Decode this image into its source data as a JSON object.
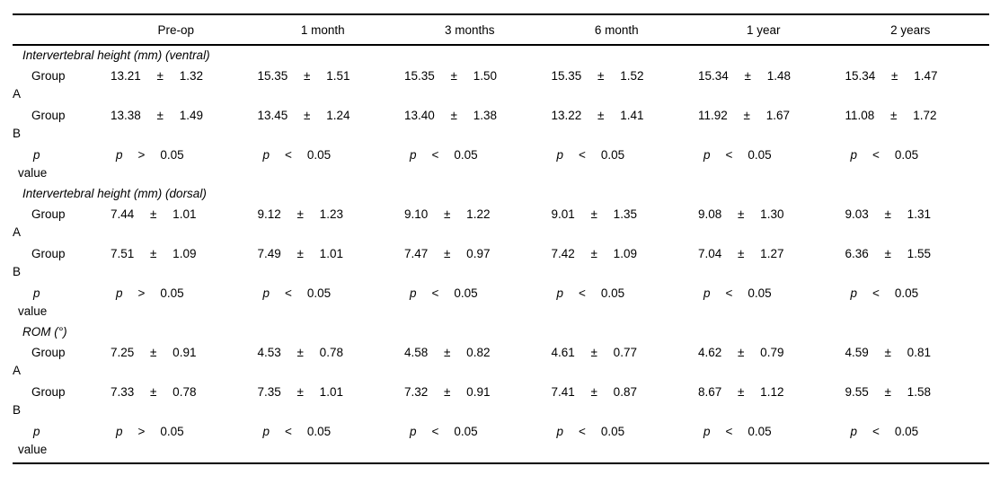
{
  "table": {
    "time_points": [
      "Pre-op",
      "1 month",
      "3 months",
      "6 month",
      "1 year",
      "2 years"
    ],
    "sections": [
      {
        "title": "Intervertebral height (mm) (ventral)",
        "rows": [
          {
            "label1": "Group",
            "label2": "A",
            "cells": [
              "13.21 ± 1.32",
              "15.35 ± 1.51",
              "15.35 ± 1.50",
              "15.35 ± 1.52",
              "15.34 ± 1.48",
              "15.34 ± 1.47"
            ]
          },
          {
            "label1": "Group",
            "label2": "B",
            "cells": [
              "13.38 ± 1.49",
              "13.45 ± 1.24",
              "13.40 ± 1.38",
              "13.22 ± 1.41",
              "11.92 ± 1.67",
              "11.08 ± 1.72"
            ]
          },
          {
            "label1": "p",
            "label2": "value",
            "cells": [
              {
                "sym": "p",
                "op": ">",
                "val": "0.05"
              },
              {
                "sym": "p",
                "op": "<",
                "val": "0.05"
              },
              {
                "sym": "p",
                "op": "<",
                "val": "0.05"
              },
              {
                "sym": "p",
                "op": "<",
                "val": "0.05"
              },
              {
                "sym": "p",
                "op": "<",
                "val": "0.05"
              },
              {
                "sym": "p",
                "op": "<",
                "val": "0.05"
              }
            ]
          }
        ]
      },
      {
        "title": "Intervertebral height (mm) (dorsal)",
        "rows": [
          {
            "label1": "Group",
            "label2": "A",
            "cells": [
              "7.44 ± 1.01",
              "9.12 ± 1.23",
              "9.10 ± 1.22",
              "9.01 ± 1.35",
              "9.08 ± 1.30",
              "9.03 ± 1.31"
            ]
          },
          {
            "label1": "Group",
            "label2": "B",
            "cells": [
              "7.51 ± 1.09",
              "7.49 ± 1.01",
              "7.47 ± 0.97",
              "7.42 ± 1.09",
              "7.04 ± 1.27",
              "6.36 ± 1.55"
            ]
          },
          {
            "label1": "p",
            "label2": "value",
            "cells": [
              {
                "sym": "p",
                "op": ">",
                "val": "0.05"
              },
              {
                "sym": "p",
                "op": "<",
                "val": "0.05"
              },
              {
                "sym": "p",
                "op": "<",
                "val": "0.05"
              },
              {
                "sym": "p",
                "op": "<",
                "val": "0.05"
              },
              {
                "sym": "p",
                "op": "<",
                "val": "0.05"
              },
              {
                "sym": "p",
                "op": "<",
                "val": "0.05"
              }
            ]
          }
        ]
      },
      {
        "title": "ROM (°)",
        "rows": [
          {
            "label1": "Group",
            "label2": "A",
            "cells": [
              "7.25 ± 0.91",
              "4.53 ± 0.78",
              "4.58 ± 0.82",
              "4.61 ± 0.77",
              "4.62 ± 0.79",
              "4.59 ± 0.81"
            ]
          },
          {
            "label1": "Group",
            "label2": "B",
            "cells": [
              "7.33 ± 0.78",
              "7.35 ± 1.01",
              "7.32 ± 0.91",
              "7.41 ± 0.87",
              "8.67 ± 1.12",
              "9.55 ± 1.58"
            ]
          },
          {
            "label1": "p",
            "label2": "value",
            "cells": [
              {
                "sym": "p",
                "op": ">",
                "val": "0.05"
              },
              {
                "sym": "p",
                "op": "<",
                "val": "0.05"
              },
              {
                "sym": "p",
                "op": "<",
                "val": "0.05"
              },
              {
                "sym": "p",
                "op": "<",
                "val": "0.05"
              },
              {
                "sym": "p",
                "op": "<",
                "val": "0.05"
              },
              {
                "sym": "p",
                "op": "<",
                "val": "0.05"
              }
            ]
          }
        ]
      }
    ]
  }
}
